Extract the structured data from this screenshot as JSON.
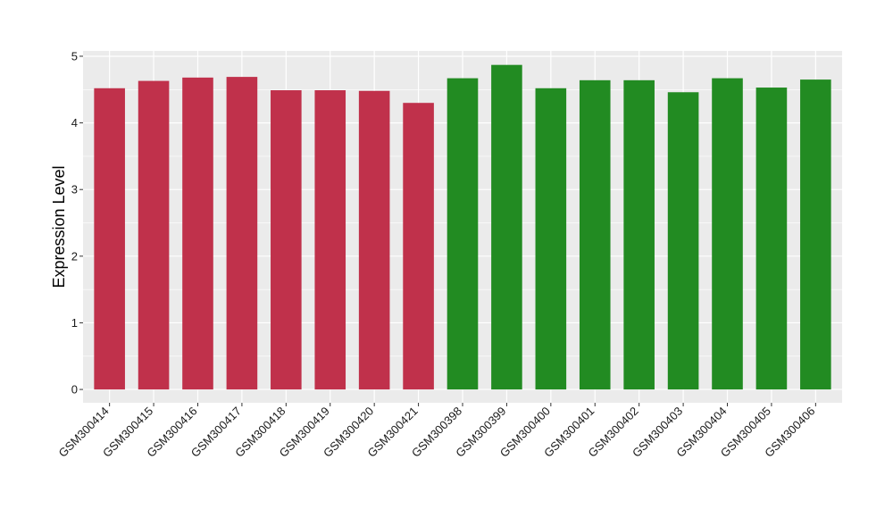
{
  "chart_data": {
    "type": "bar",
    "title": "",
    "xlabel": "",
    "ylabel": "Expression Level",
    "ylim": [
      -0.2,
      5.08
    ],
    "yticks": [
      0,
      1,
      2,
      3,
      4,
      5
    ],
    "grid": true,
    "legend": "none",
    "categories": [
      "GSM300414",
      "GSM300415",
      "GSM300416",
      "GSM300417",
      "GSM300418",
      "GSM300419",
      "GSM300420",
      "GSM300421",
      "GSM300398",
      "GSM300399",
      "GSM300400",
      "GSM300401",
      "GSM300402",
      "GSM300403",
      "GSM300404",
      "GSM300405",
      "GSM300406"
    ],
    "values": [
      4.52,
      4.63,
      4.68,
      4.69,
      4.49,
      4.49,
      4.48,
      4.3,
      4.67,
      4.87,
      4.52,
      4.64,
      4.64,
      4.46,
      4.67,
      4.53,
      4.65
    ],
    "bar_colors": [
      "#c0314b",
      "#c0314b",
      "#c0314b",
      "#c0314b",
      "#c0314b",
      "#c0314b",
      "#c0314b",
      "#c0314b",
      "#228b22",
      "#228b22",
      "#228b22",
      "#228b22",
      "#228b22",
      "#228b22",
      "#228b22",
      "#228b22",
      "#228b22"
    ],
    "panel_background": "#ebebeb",
    "grid_color": "#ffffff"
  }
}
